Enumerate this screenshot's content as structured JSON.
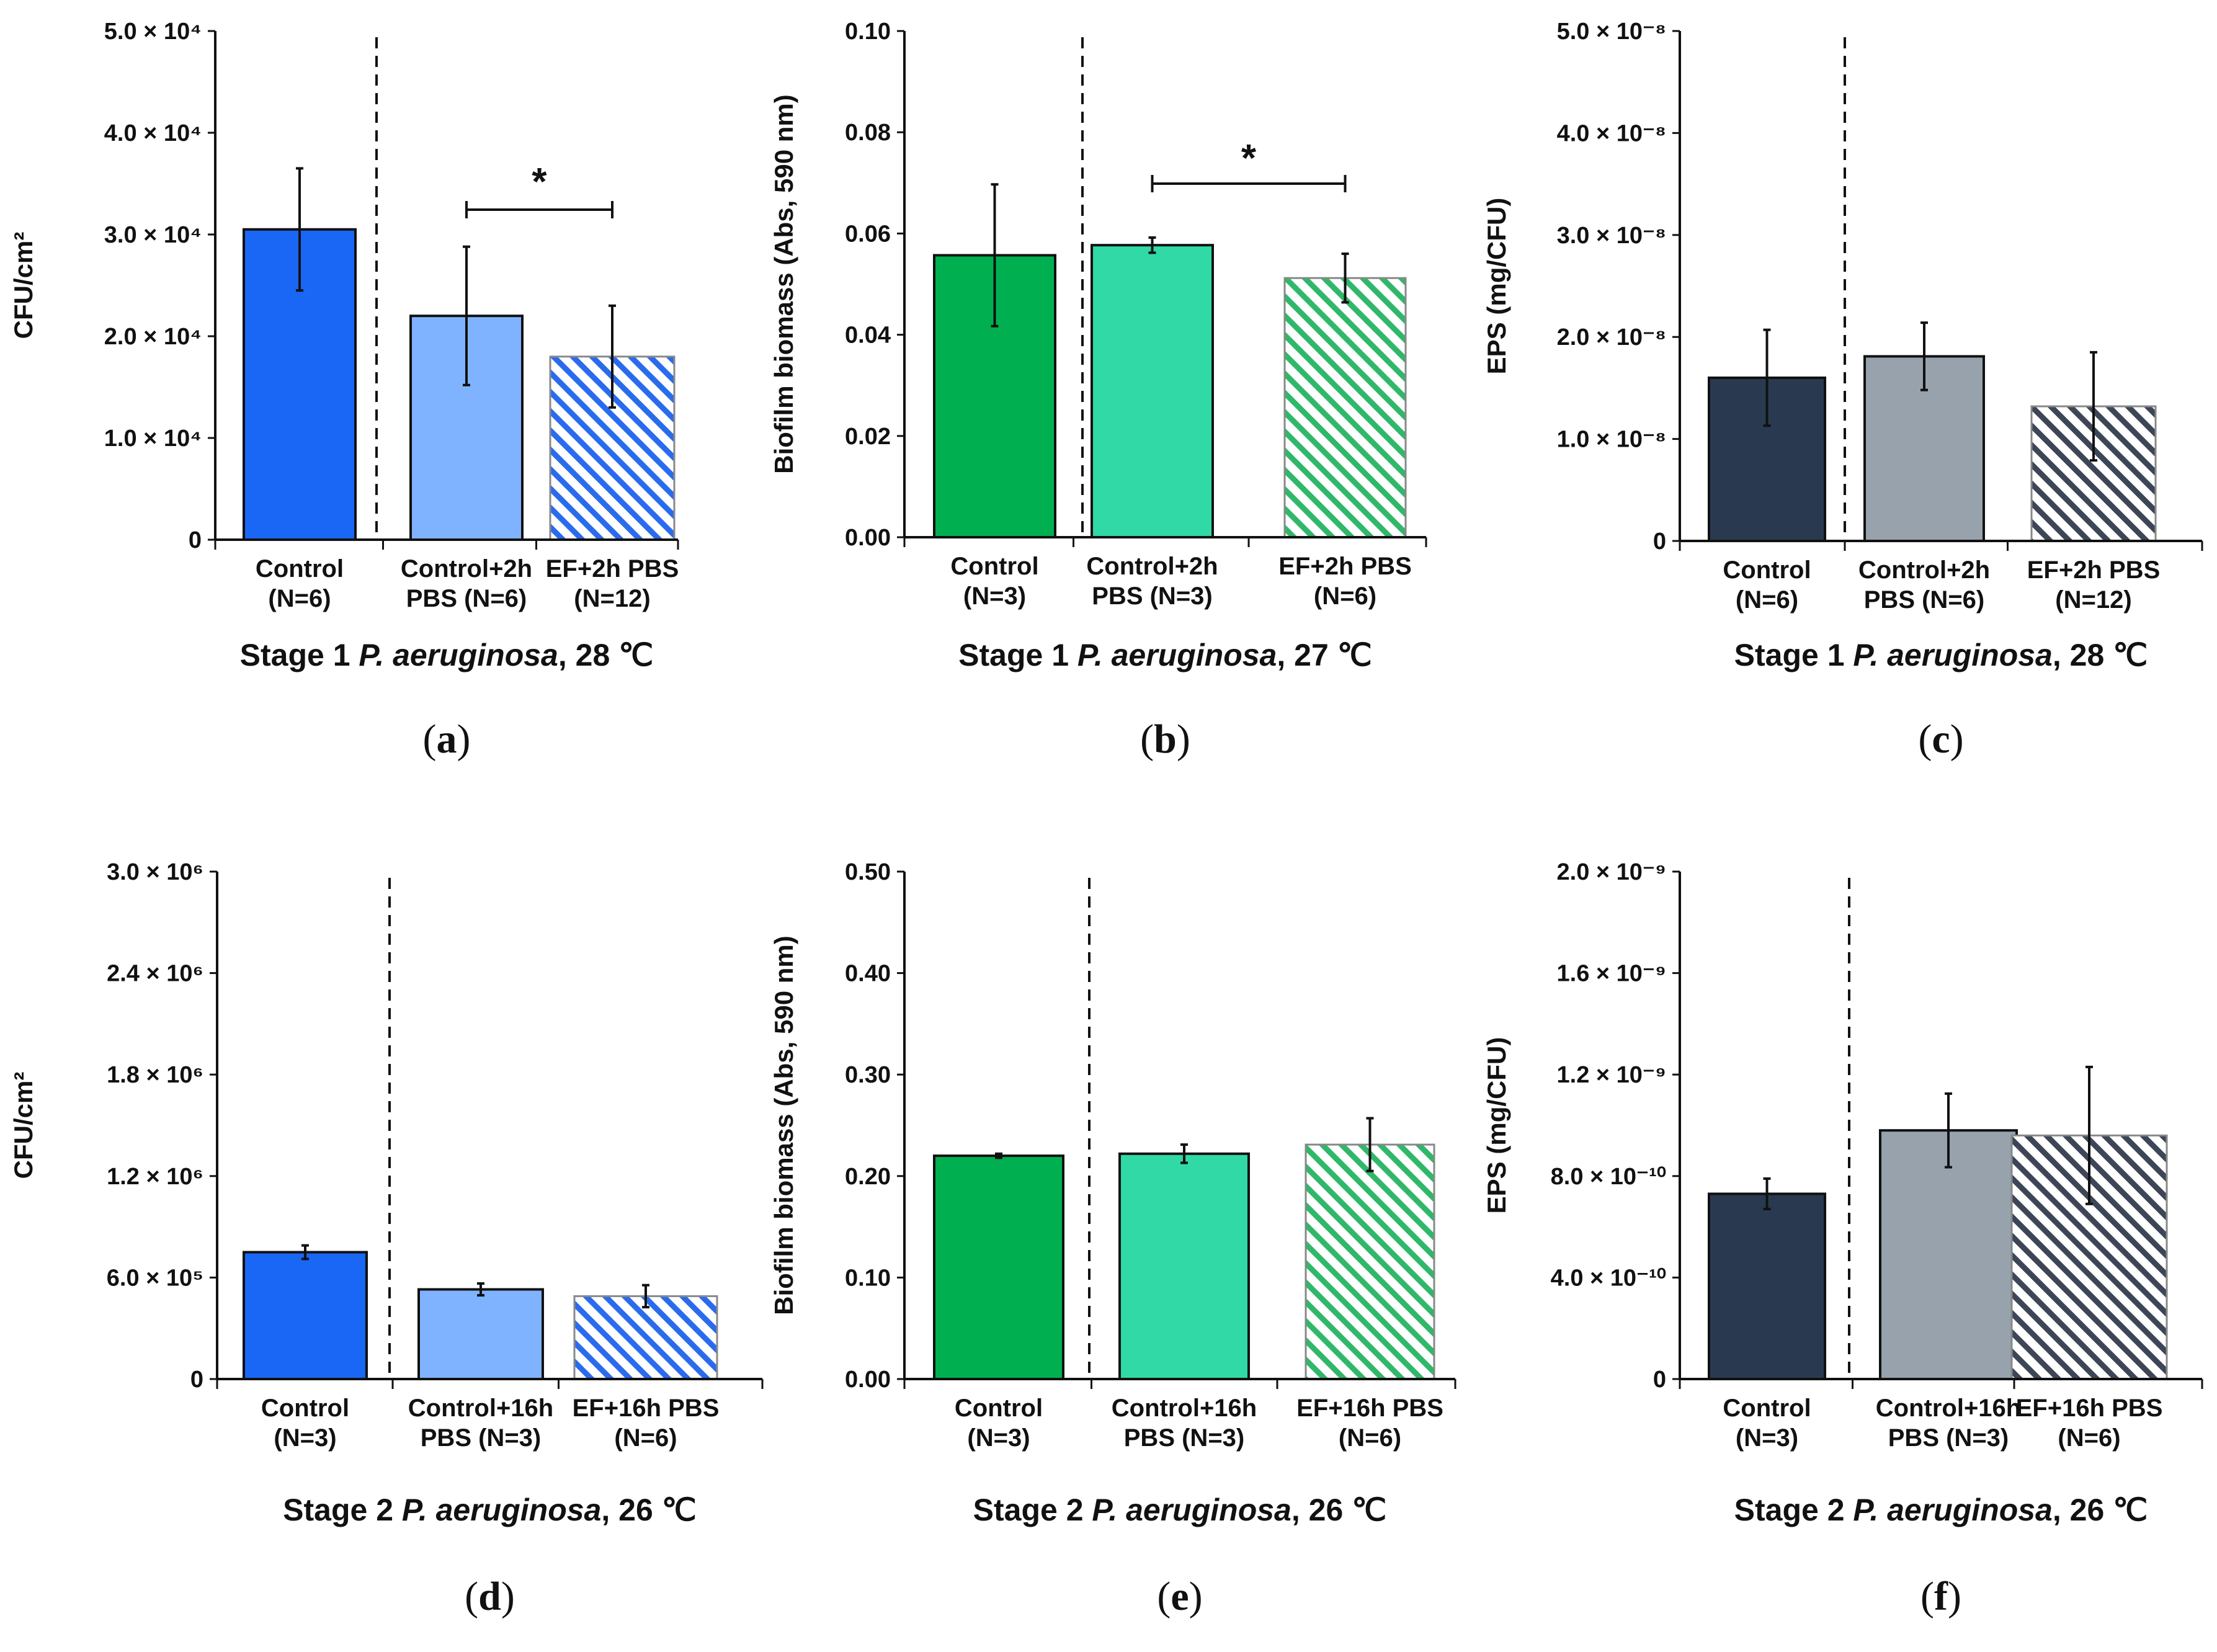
{
  "chart_data": [
    {
      "panel": "a",
      "type": "bar",
      "title": [
        "Stage 1 ",
        "P. aeruginosa",
        ", 28 ℃"
      ],
      "panel_label": "a",
      "ylabel": "CFU/cm²",
      "ylim": [
        0,
        50000
      ],
      "yticks": [
        0,
        10000,
        20000,
        30000,
        40000,
        50000
      ],
      "ytick_labels": [
        "0",
        "1.0 × 10⁴",
        "2.0 × 10⁴",
        "3.0 × 10⁴",
        "4.0 × 10⁴",
        "5.0 × 10⁴"
      ],
      "categories": [
        [
          "Control",
          "(N=6)"
        ],
        [
          "Control+2h",
          "PBS (N=6)"
        ],
        [
          "EF+2h PBS",
          "(N=12)"
        ]
      ],
      "values": [
        30500,
        22000,
        18000
      ],
      "errors": [
        6000,
        6800,
        5000
      ],
      "colors": [
        "#1a66f5",
        "#80b3ff",
        "#2a6bee"
      ],
      "hatched": [
        false,
        false,
        true
      ],
      "significance": {
        "from": 1,
        "to": 2,
        "label": "*",
        "y": 32500
      }
    },
    {
      "panel": "b",
      "type": "bar",
      "title": [
        "Stage 1 ",
        "P. aeruginosa",
        ", 27 ℃"
      ],
      "panel_label": "b",
      "ylabel": "Biofilm biomass (Abs, 590 nm)",
      "ylim": [
        0,
        0.1
      ],
      "yticks": [
        0,
        0.02,
        0.04,
        0.06,
        0.08,
        0.1
      ],
      "ytick_labels": [
        "0.00",
        "0.02",
        "0.04",
        "0.06",
        "0.08",
        "0.10"
      ],
      "categories": [
        [
          "Control",
          "(N=3)"
        ],
        [
          "Control+2h",
          "PBS (N=3)"
        ],
        [
          "EF+2h PBS",
          "(N=6)"
        ]
      ],
      "values": [
        0.0557,
        0.0577,
        0.0512
      ],
      "errors": [
        0.014,
        0.0015,
        0.0048
      ],
      "colors": [
        "#00b050",
        "#30d9a6",
        "#30b86a"
      ],
      "hatched": [
        false,
        false,
        true
      ],
      "significance": {
        "from": 1,
        "to": 2,
        "label": "*",
        "y": 0.07
      }
    },
    {
      "panel": "c",
      "type": "bar",
      "title": [
        "Stage 1 ",
        "P. aeruginosa",
        ", 28 ℃"
      ],
      "panel_label": "c",
      "ylabel": "EPS (mg/CFU)",
      "ylim": [
        0,
        5e-08
      ],
      "yticks": [
        0,
        1e-08,
        2e-08,
        3e-08,
        4e-08,
        5e-08
      ],
      "ytick_labels": [
        "0",
        "1.0 × 10⁻⁸",
        "2.0 × 10⁻⁸",
        "3.0 × 10⁻⁸",
        "4.0 × 10⁻⁸",
        "5.0 × 10⁻⁸"
      ],
      "categories": [
        [
          "Control",
          "(N=6)"
        ],
        [
          "Control+2h",
          "PBS (N=6)"
        ],
        [
          "EF+2h PBS",
          "(N=12)"
        ]
      ],
      "values": [
        1.6e-08,
        1.81e-08,
        1.32e-08
      ],
      "errors": [
        4.7e-09,
        3.3e-09,
        5.3e-09
      ],
      "colors": [
        "#293a50",
        "#97a2ac",
        "#3c4656"
      ],
      "hatched": [
        false,
        false,
        true
      ],
      "significance": null
    },
    {
      "panel": "d",
      "type": "bar",
      "title": [
        "Stage 2 ",
        "P. aeruginosa",
        ", 26 ℃"
      ],
      "panel_label": "d",
      "ylabel": "CFU/cm²",
      "ylim": [
        0,
        3000000
      ],
      "yticks": [
        0,
        600000,
        1200000,
        1800000,
        2400000,
        3000000
      ],
      "ytick_labels": [
        "0",
        "6.0 × 10⁵",
        "1.2 × 10⁶",
        "1.8 × 10⁶",
        "2.4 × 10⁶",
        "3.0 × 10⁶"
      ],
      "categories": [
        [
          "Control",
          "(N=3)"
        ],
        [
          "Control+16h",
          "PBS (N=3)"
        ],
        [
          "EF+16h PBS",
          "(N=6)"
        ]
      ],
      "values": [
        750000,
        530000,
        490000
      ],
      "errors": [
        40000,
        35000,
        65000
      ],
      "colors": [
        "#1a66f5",
        "#80b3ff",
        "#2a6bee"
      ],
      "hatched": [
        false,
        false,
        true
      ],
      "significance": null
    },
    {
      "panel": "e",
      "type": "bar",
      "title": [
        "Stage 2 ",
        "P. aeruginosa",
        ", 26 ℃"
      ],
      "panel_label": "e",
      "ylabel": "Biofilm biomass (Abs, 590 nm)",
      "ylim": [
        0,
        0.5
      ],
      "yticks": [
        0,
        0.1,
        0.2,
        0.3,
        0.4,
        0.5
      ],
      "ytick_labels": [
        "0.00",
        "0.10",
        "0.20",
        "0.30",
        "0.40",
        "0.50"
      ],
      "categories": [
        [
          "Control",
          "(N=3)"
        ],
        [
          "Control+16h",
          "PBS (N=3)"
        ],
        [
          "EF+16h PBS",
          "(N=6)"
        ]
      ],
      "values": [
        0.22,
        0.222,
        0.231
      ],
      "errors": [
        0.002,
        0.009,
        0.026
      ],
      "colors": [
        "#00b050",
        "#30d9a6",
        "#30b86a"
      ],
      "hatched": [
        false,
        false,
        true
      ],
      "significance": null
    },
    {
      "panel": "f",
      "type": "bar",
      "title": [
        "Stage 2 ",
        "P. aeruginosa",
        ", 26 ℃"
      ],
      "panel_label": "f",
      "ylabel": "EPS (mg/CFU)",
      "ylim": [
        0,
        2e-09
      ],
      "yticks": [
        0,
        4e-10,
        8e-10,
        1.2e-09,
        1.6e-09,
        2e-09
      ],
      "ytick_labels": [
        "0",
        "4.0 × 10⁻¹⁰",
        "8.0 × 10⁻¹⁰",
        "1.2 × 10⁻⁹",
        "1.6 × 10⁻⁹",
        "2.0 × 10⁻⁹"
      ],
      "categories": [
        [
          "Control",
          "(N=3)"
        ],
        [
          "Control+16h",
          "PBS (N=3)"
        ],
        [
          "EF+16h PBS",
          "(N=6)"
        ]
      ],
      "values": [
        7.3e-10,
        9.8e-10,
        9.6e-10
      ],
      "errors": [
        6e-11,
        1.45e-10,
        2.7e-10
      ],
      "colors": [
        "#293a50",
        "#97a2ac",
        "#3c4656"
      ],
      "hatched": [
        false,
        false,
        true
      ],
      "significance": null
    }
  ]
}
